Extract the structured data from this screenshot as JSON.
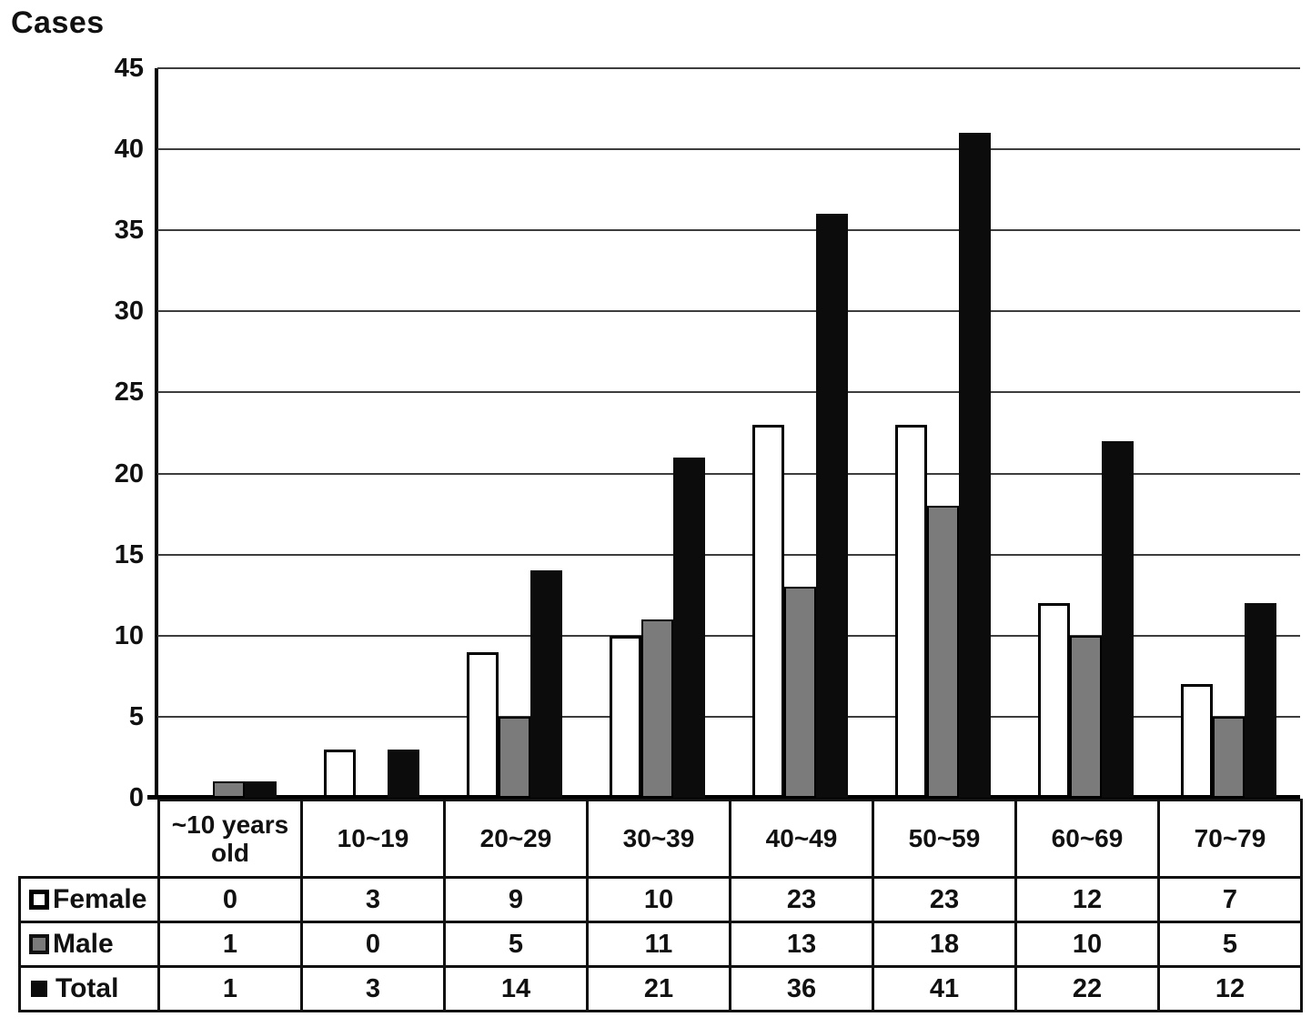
{
  "chart_data": {
    "type": "bar",
    "title": "",
    "ylabel": "Cases",
    "xlabel": "",
    "categories": [
      "~10 years old",
      "10~19",
      "20~29",
      "30~39",
      "40~49",
      "50~59",
      "60~69",
      "70~79"
    ],
    "series": [
      {
        "name": "Female",
        "color": "#ffffff",
        "marker": "white-square-icon",
        "values": [
          0,
          3,
          9,
          10,
          23,
          23,
          12,
          7
        ]
      },
      {
        "name": "Male",
        "color": "#7b7b7b",
        "marker": "gray-square-icon",
        "values": [
          1,
          0,
          5,
          11,
          13,
          18,
          10,
          5
        ]
      },
      {
        "name": "Total",
        "color": "#0c0c0c",
        "marker": "black-square-icon",
        "values": [
          1,
          3,
          14,
          21,
          36,
          41,
          22,
          12
        ]
      }
    ],
    "ylim": [
      0,
      45
    ],
    "yticks": [
      0,
      5,
      10,
      15,
      20,
      25,
      30,
      35,
      40,
      45
    ],
    "grid": true,
    "legend_position": "table-left",
    "bar_outline_color": "#000000",
    "gridline_color": "#3d3d3d"
  }
}
